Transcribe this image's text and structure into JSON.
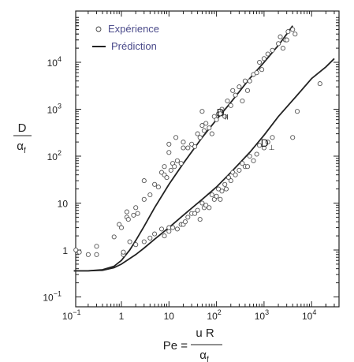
{
  "chart_data": {
    "type": "scatter",
    "title": "",
    "x_scale": "log",
    "y_scale": "log",
    "xlim": [
      0.1,
      50000
    ],
    "ylim": [
      0.1,
      100000
    ],
    "grid": false,
    "legend_position": "top-left",
    "x_ticks": [
      {
        "value": 0.1,
        "base": "10",
        "exp": "−1"
      },
      {
        "value": 1,
        "base": "1",
        "exp": ""
      },
      {
        "value": 10,
        "base": "10",
        "exp": ""
      },
      {
        "value": 100,
        "base": "10",
        "exp": "2"
      },
      {
        "value": 1000,
        "base": "10",
        "exp": "3"
      },
      {
        "value": 10000,
        "base": "10",
        "exp": "4"
      }
    ],
    "y_ticks": [
      {
        "value": 0.1,
        "base": "10",
        "exp": "−1"
      },
      {
        "value": 1,
        "base": "1",
        "exp": ""
      },
      {
        "value": 10,
        "base": "10",
        "exp": ""
      },
      {
        "value": 100,
        "base": "10",
        "exp": "2"
      },
      {
        "value": 1000,
        "base": "10",
        "exp": "3"
      },
      {
        "value": 10000,
        "base": "10",
        "exp": "4"
      }
    ],
    "xlabel": {
      "prefix": "Pe =",
      "numerator": "u  R",
      "denominator": "α",
      "denominator_sub": "f"
    },
    "ylabel": {
      "numerator": "D",
      "denominator": "α",
      "denominator_sub": "f"
    },
    "legend": {
      "experience": "Expérience",
      "prediction": "Prédiction"
    },
    "series": [
      {
        "name": "D‖",
        "label_main": "D",
        "label_sub": "II",
        "label_at": {
          "x": 100,
          "y": 700
        },
        "curve": [
          [
            0.1,
            0.36
          ],
          [
            0.2,
            0.36
          ],
          [
            0.4,
            0.38
          ],
          [
            0.7,
            0.45
          ],
          [
            1,
            0.6
          ],
          [
            1.5,
            1.0
          ],
          [
            2,
            1.6
          ],
          [
            3,
            3.2
          ],
          [
            5,
            8
          ],
          [
            10,
            25
          ],
          [
            20,
            70
          ],
          [
            50,
            250
          ],
          [
            100,
            600
          ],
          [
            200,
            1400
          ],
          [
            500,
            4500
          ],
          [
            1000,
            10000
          ],
          [
            2000,
            23000
          ],
          [
            3000,
            40000
          ],
          [
            4000,
            60000
          ]
        ],
        "points": [
          [
            0.1,
            0.7
          ],
          [
            0.11,
            1.0
          ],
          [
            0.13,
            0.9
          ],
          [
            0.2,
            0.8
          ],
          [
            0.3,
            0.8
          ],
          [
            0.3,
            1.2
          ],
          [
            0.7,
            1.9
          ],
          [
            0.9,
            3.5
          ],
          [
            1,
            3.0
          ],
          [
            1.1,
            0.8
          ],
          [
            1.3,
            5
          ],
          [
            1.3,
            6.5
          ],
          [
            1.4,
            4.5
          ],
          [
            1.8,
            5.5
          ],
          [
            2,
            8
          ],
          [
            2.2,
            6
          ],
          [
            3,
            12
          ],
          [
            3,
            30
          ],
          [
            4,
            15
          ],
          [
            5,
            25
          ],
          [
            6,
            22
          ],
          [
            7,
            45
          ],
          [
            8,
            60
          ],
          [
            8,
            40
          ],
          [
            9,
            35
          ],
          [
            10,
            180
          ],
          [
            10,
            120
          ],
          [
            11,
            50
          ],
          [
            12,
            70
          ],
          [
            13,
            60
          ],
          [
            14,
            250
          ],
          [
            15,
            80
          ],
          [
            18,
            70
          ],
          [
            20,
            150
          ],
          [
            20,
            200
          ],
          [
            25,
            150
          ],
          [
            30,
            180
          ],
          [
            35,
            160
          ],
          [
            40,
            300
          ],
          [
            45,
            250
          ],
          [
            50,
            900
          ],
          [
            50,
            450
          ],
          [
            55,
            350
          ],
          [
            60,
            500
          ],
          [
            70,
            400
          ],
          [
            80,
            300
          ],
          [
            90,
            700
          ],
          [
            100,
            600
          ],
          [
            110,
            800
          ],
          [
            120,
            800
          ],
          [
            130,
            1000
          ],
          [
            150,
            700
          ],
          [
            170,
            1500
          ],
          [
            200,
            1200
          ],
          [
            220,
            2500
          ],
          [
            250,
            2000
          ],
          [
            300,
            3000
          ],
          [
            350,
            1500
          ],
          [
            400,
            4000
          ],
          [
            450,
            2500
          ],
          [
            500,
            4000
          ],
          [
            600,
            5500
          ],
          [
            700,
            6000
          ],
          [
            800,
            10000
          ],
          [
            900,
            7000
          ],
          [
            1000,
            12000
          ],
          [
            1200,
            15000
          ],
          [
            1500,
            18000
          ],
          [
            2000,
            25000
          ],
          [
            2200,
            35000
          ],
          [
            2500,
            20000
          ],
          [
            2800,
            30000
          ],
          [
            3000,
            30000
          ],
          [
            3200,
            45000
          ],
          [
            4000,
            50000
          ],
          [
            4500,
            40000
          ]
        ]
      },
      {
        "name": "D⊥",
        "label_main": "D",
        "label_sub": "⊥",
        "label_at": {
          "x": 850,
          "y": 160
        },
        "curve": [
          [
            0.1,
            0.36
          ],
          [
            0.2,
            0.36
          ],
          [
            0.4,
            0.37
          ],
          [
            0.7,
            0.42
          ],
          [
            1,
            0.5
          ],
          [
            2,
            0.8
          ],
          [
            3,
            1.1
          ],
          [
            5,
            1.7
          ],
          [
            10,
            3.0
          ],
          [
            20,
            5.5
          ],
          [
            50,
            12
          ],
          [
            100,
            22
          ],
          [
            200,
            45
          ],
          [
            500,
            120
          ],
          [
            1000,
            280
          ],
          [
            2000,
            700
          ],
          [
            5000,
            2000
          ],
          [
            10000,
            4500
          ],
          [
            20000,
            8000
          ],
          [
            30000,
            12000
          ]
        ],
        "points": [
          [
            1.1,
            0.9
          ],
          [
            1.5,
            1.5
          ],
          [
            2,
            1.3
          ],
          [
            3,
            1.5
          ],
          [
            4,
            1.8
          ],
          [
            5,
            2.2
          ],
          [
            7,
            2.8
          ],
          [
            8,
            2.0
          ],
          [
            10,
            2.5
          ],
          [
            10,
            3.0
          ],
          [
            12,
            3.0
          ],
          [
            15,
            2.8
          ],
          [
            18,
            3.5
          ],
          [
            20,
            3.5
          ],
          [
            22,
            4.0
          ],
          [
            25,
            5
          ],
          [
            30,
            6
          ],
          [
            35,
            6
          ],
          [
            40,
            7
          ],
          [
            45,
            4.5
          ],
          [
            50,
            10
          ],
          [
            55,
            8
          ],
          [
            60,
            9
          ],
          [
            70,
            8
          ],
          [
            80,
            15
          ],
          [
            90,
            12
          ],
          [
            100,
            14
          ],
          [
            110,
            20
          ],
          [
            120,
            12
          ],
          [
            130,
            18
          ],
          [
            150,
            25
          ],
          [
            160,
            20
          ],
          [
            180,
            35
          ],
          [
            200,
            30
          ],
          [
            220,
            45
          ],
          [
            250,
            40
          ],
          [
            300,
            50
          ],
          [
            350,
            70
          ],
          [
            400,
            60
          ],
          [
            450,
            60
          ],
          [
            500,
            100
          ],
          [
            600,
            80
          ],
          [
            700,
            110
          ],
          [
            800,
            170
          ],
          [
            1000,
            150
          ],
          [
            1200,
            200
          ],
          [
            1500,
            250
          ],
          [
            4000,
            250
          ],
          [
            5000,
            900
          ],
          [
            15000,
            3500
          ]
        ]
      }
    ]
  }
}
